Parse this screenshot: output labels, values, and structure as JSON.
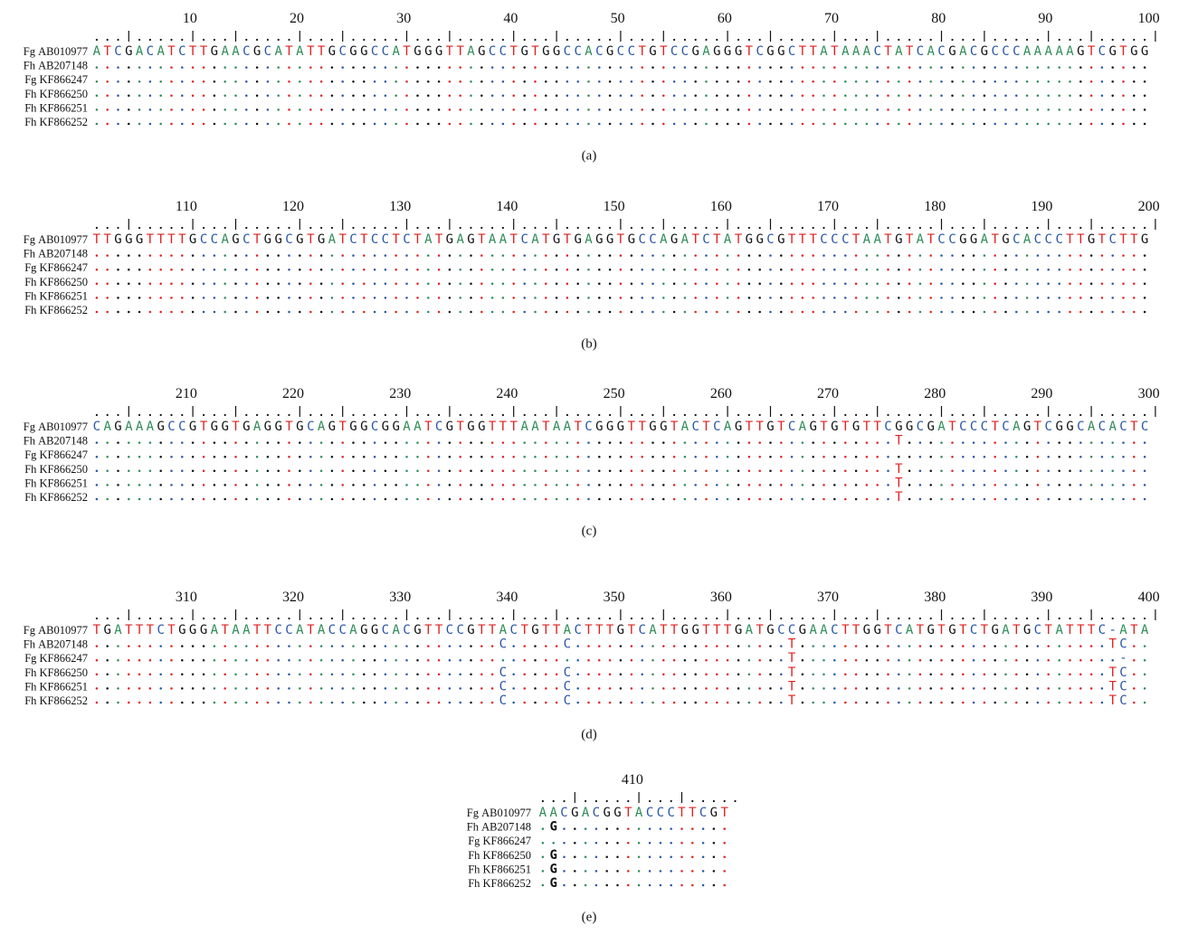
{
  "colors": {
    "A": "#2e8b57",
    "C": "#2855a8",
    "G": "#111111",
    "T": "#e02020",
    "-": "#2855a8"
  },
  "labels": [
    "Fg AB010977",
    "Fh AB207148",
    "Fg KF866247",
    "Fh KF866250",
    "Fh KF866251",
    "Fh KF866252"
  ],
  "panels": [
    {
      "caption": "(a)",
      "start": 1,
      "numbers": [
        "10",
        "20",
        "30",
        "40",
        "50",
        "60",
        "70",
        "80",
        "90",
        "100"
      ],
      "ruler": "...|.....| ...|.....| ...|.....| ...|.....| ...|.....| ...|.....| ...|.....| ...|.....| ...|.....| ...|.....|",
      "reference": "ATCGACATCTTGAACGCATATTGCGGCCATGGGTTAGCCTGTGGCCACGCCTGTCCGAGGGTCGGCTTATAAACTATCACGACGCCCAAAAAGTCGTGG",
      "variants": [
        [],
        [],
        [],
        [],
        []
      ]
    },
    {
      "caption": "(b)",
      "start": 101,
      "numbers": [
        "110",
        "120",
        "130",
        "140",
        "150",
        "160",
        "170",
        "180",
        "190",
        "200"
      ],
      "ruler": "...|.....| ...|.....| ...|.....| ...|.....| ...|.....| ...|.....| ...|.....| ...|.....| ...|.....| ...|.....|",
      "reference": "TTGGGTTTTGCCAGCTGGCGTGATCTCCTCTATGAGTAATCATGTGAGGTGCCAGATCTATGGCGTTTCCCTAATGTATCCGGATGCACCCTTGTCTTG",
      "variants": [
        [],
        [],
        [],
        [],
        []
      ]
    },
    {
      "caption": "(c)",
      "start": 201,
      "numbers": [
        "210",
        "220",
        "230",
        "240",
        "250",
        "260",
        "270",
        "280",
        "290",
        "300"
      ],
      "ruler": "...|.....| ...|.....| ...|.....| ...|.....| ...|.....| ...|.....| ...|.....| ...|.....| ...|.....| ...|.....|",
      "reference": "CAGAAAGCCGTGGTGAGGTGCAGTGGCGGAATCGTGGTTTAATAATCGGGTTGGTACTCAGTTGTCAGTGTGTTCGGCGATCCCTCAGTCGGCACACTC",
      "variants": [
        [
          [
            "276",
            "T"
          ],
          [
            "300",
            "T"
          ]
        ],
        [],
        [
          [
            "276",
            "T"
          ],
          [
            "300",
            "T"
          ]
        ],
        [
          [
            "276",
            "T"
          ],
          [
            "300",
            "T"
          ]
        ],
        [
          [
            "276",
            "T"
          ],
          [
            "300",
            "T"
          ]
        ]
      ]
    },
    {
      "caption": "(d)",
      "start": 301,
      "numbers": [
        "310",
        "320",
        "330",
        "340",
        "350",
        "360",
        "370",
        "380",
        "390",
        "400"
      ],
      "ruler": "...|.....| ...|.....| ...|.....| ...|.....| ...|.....| ...|.....| ...|.....| ...|.....| ...|.....| ...|.....|",
      "reference": "TGATTTCTGGGATAATTCCATACCAGGCACGTTCCGTTACTGTTACTTTGTCATTGGTTTGATGCCGAACTTGGTCATGTGTCTGATGCTATTTC-ATA",
      "variants": [
        [
          [
            "339",
            "C"
          ],
          [
            "345",
            "C"
          ],
          [
            "366",
            "T"
          ],
          [
            "396",
            "T"
          ],
          [
            "397",
            "C"
          ]
        ],
        [
          [
            "366",
            "T"
          ],
          [
            "397",
            "-"
          ]
        ],
        [
          [
            "339",
            "C"
          ],
          [
            "345",
            "C"
          ],
          [
            "366",
            "T"
          ],
          [
            "396",
            "T"
          ],
          [
            "397",
            "C"
          ]
        ],
        [
          [
            "339",
            "C"
          ],
          [
            "345",
            "C"
          ],
          [
            "366",
            "T"
          ],
          [
            "396",
            "T"
          ],
          [
            "397",
            "C"
          ]
        ],
        [
          [
            "339",
            "C"
          ],
          [
            "345",
            "C"
          ],
          [
            "366",
            "T"
          ],
          [
            "396",
            "T"
          ],
          [
            "397",
            "C"
          ]
        ]
      ]
    },
    {
      "caption": "(e)",
      "start": 401,
      "numbers": [
        "410"
      ],
      "ruler": "...|.....| ...|.....",
      "reference": "AACGACGGTACCCTTCGT",
      "variants": [
        [
          [
            "402",
            "G"
          ]
        ],
        [],
        [
          [
            "402",
            "G"
          ]
        ],
        [
          [
            "402",
            "G"
          ]
        ],
        [
          [
            "402",
            "G"
          ]
        ]
      ]
    }
  ]
}
